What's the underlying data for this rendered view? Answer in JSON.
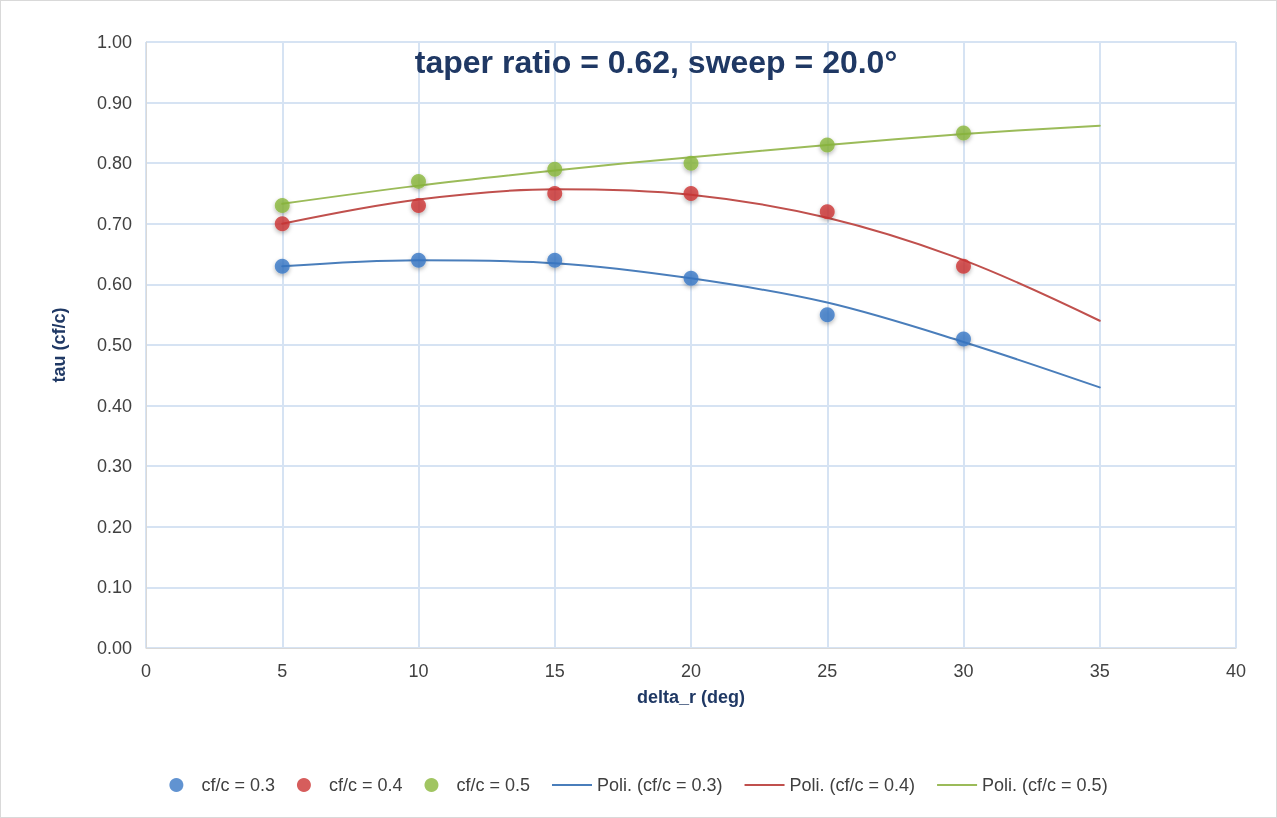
{
  "chart_data": {
    "type": "scatter",
    "title": "taper ratio = 0.62, sweep = 20.0°",
    "xlabel": "delta_r (deg)",
    "ylabel": "tau (cf/c)",
    "xlim": [
      0,
      40
    ],
    "xticks": [
      0,
      5,
      10,
      15,
      20,
      25,
      30,
      35,
      40
    ],
    "ylim": [
      0,
      1
    ],
    "yticks": [
      {
        "value": 0,
        "label": "0.00"
      },
      {
        "value": 0.1,
        "label": "0.10"
      },
      {
        "value": 0.2,
        "label": "0.20"
      },
      {
        "value": 0.3,
        "label": "0.30"
      },
      {
        "value": 0.4,
        "label": "0.40"
      },
      {
        "value": 0.5,
        "label": "0.50"
      },
      {
        "value": 0.6,
        "label": "0.60"
      },
      {
        "value": 0.7,
        "label": "0.70"
      },
      {
        "value": 0.8,
        "label": "0.80"
      },
      {
        "value": 0.9,
        "label": "0.90"
      },
      {
        "value": 1,
        "label": "1.00"
      }
    ],
    "grid": true,
    "legend": "bottom",
    "series": [
      {
        "name": "cf/c = 0.3",
        "marker": "circle",
        "color": "#3a78c6",
        "x": [
          5,
          10,
          15,
          20,
          25,
          30
        ],
        "values": [
          0.63,
          0.64,
          0.64,
          0.61,
          0.55,
          0.51
        ]
      },
      {
        "name": "cf/c = 0.4",
        "marker": "circle",
        "color": "#cc3533",
        "x": [
          5,
          10,
          15,
          20,
          25,
          30
        ],
        "values": [
          0.7,
          0.73,
          0.75,
          0.75,
          0.72,
          0.63
        ]
      },
      {
        "name": "cf/c = 0.5",
        "marker": "circle",
        "color": "#8ab73b",
        "x": [
          5,
          10,
          15,
          20,
          25,
          30
        ],
        "values": [
          0.73,
          0.77,
          0.79,
          0.8,
          0.83,
          0.85
        ]
      },
      {
        "name": "Poli. (cf/c = 0.3)",
        "type": "line",
        "marker": "none",
        "line_style": "solid",
        "color": "#4a7ebb",
        "x": [
          5,
          10,
          15,
          20,
          25,
          30,
          35
        ],
        "values": [
          0.63,
          0.64,
          0.635,
          0.61,
          0.57,
          0.505,
          0.43
        ]
      },
      {
        "name": "Poli. (cf/c = 0.4)",
        "type": "line",
        "marker": "none",
        "line_style": "solid",
        "color": "#c0504d",
        "x": [
          5,
          10,
          15,
          20,
          25,
          30,
          35
        ],
        "values": [
          0.7,
          0.74,
          0.757,
          0.748,
          0.71,
          0.64,
          0.54
        ]
      },
      {
        "name": "Poli. (cf/c = 0.5)",
        "type": "line",
        "marker": "none",
        "line_style": "solid",
        "color": "#9bbb59",
        "x": [
          5,
          10,
          15,
          20,
          25,
          30,
          35
        ],
        "values": [
          0.733,
          0.763,
          0.788,
          0.81,
          0.83,
          0.848,
          0.862
        ]
      }
    ]
  }
}
